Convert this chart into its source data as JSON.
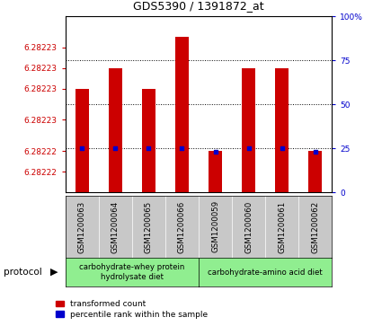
{
  "title": "GDS5390 / 1391872_at",
  "samples": [
    "GSM1200063",
    "GSM1200064",
    "GSM1200065",
    "GSM1200066",
    "GSM1200059",
    "GSM1200060",
    "GSM1200061",
    "GSM1200062"
  ],
  "red_values": [
    6.282228,
    6.28223,
    6.282228,
    6.282233,
    6.282222,
    6.28223,
    6.28223,
    6.282222
  ],
  "blue_values": [
    25,
    25,
    25,
    25,
    23,
    25,
    25,
    23
  ],
  "ymin": 6.282218,
  "ymax": 6.282235,
  "left_yticks": [
    6.28222,
    6.282222,
    6.282225,
    6.282228,
    6.28223,
    6.282232
  ],
  "left_ytick_labels": [
    "6.28222",
    "6.28222",
    "6.28223",
    "6.28223",
    "6.28223",
    "6.28223"
  ],
  "right_yticks": [
    0,
    25,
    50,
    75,
    100
  ],
  "right_ytick_labels": [
    "0",
    "25",
    "50",
    "75",
    "100%"
  ],
  "group1_label": "carbohydrate-whey protein\nhydrolysate diet",
  "group2_label": "carbohydrate-amino acid diet",
  "group_color": "#90EE90",
  "xlabel_bg_color": "#c8c8c8",
  "bar_color": "#cc0000",
  "dot_color": "#0000cc",
  "bar_width": 0.4,
  "legend_red": "transformed count",
  "legend_blue": "percentile rank within the sample"
}
